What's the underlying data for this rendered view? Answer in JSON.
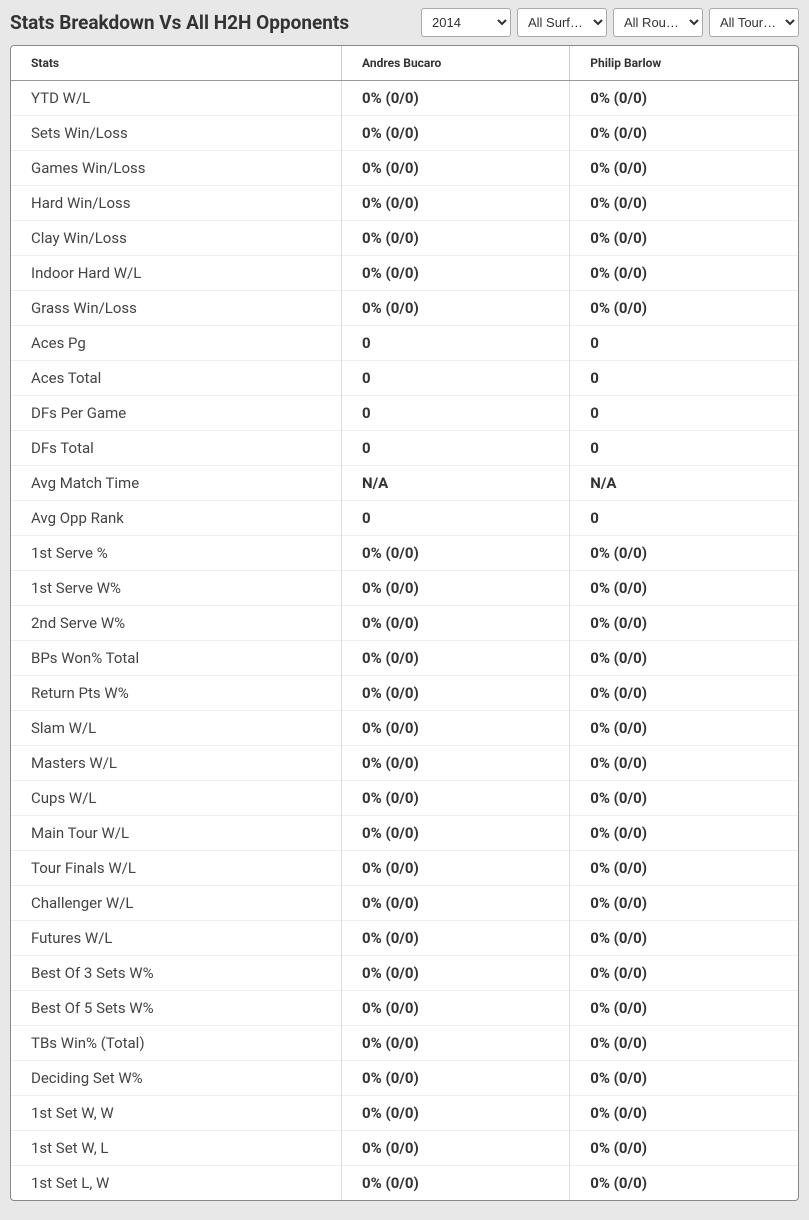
{
  "header": {
    "title": "Stats Breakdown Vs All H2H Opponents",
    "filters": {
      "year": {
        "selected": "2014"
      },
      "surface": {
        "selected": "All Surf…"
      },
      "round": {
        "selected": "All Rou…"
      },
      "tour": {
        "selected": "All Tour…"
      }
    }
  },
  "table": {
    "columns": [
      "Stats",
      "Andres Bucaro",
      "Philip Barlow"
    ],
    "rows": [
      {
        "stat": "YTD W/L",
        "p1": "0% (0/0)",
        "p2": "0% (0/0)"
      },
      {
        "stat": "Sets Win/Loss",
        "p1": "0% (0/0)",
        "p2": "0% (0/0)"
      },
      {
        "stat": "Games Win/Loss",
        "p1": "0% (0/0)",
        "p2": "0% (0/0)"
      },
      {
        "stat": "Hard Win/Loss",
        "p1": "0% (0/0)",
        "p2": "0% (0/0)"
      },
      {
        "stat": "Clay Win/Loss",
        "p1": "0% (0/0)",
        "p2": "0% (0/0)"
      },
      {
        "stat": "Indoor Hard W/L",
        "p1": "0% (0/0)",
        "p2": "0% (0/0)"
      },
      {
        "stat": "Grass Win/Loss",
        "p1": "0% (0/0)",
        "p2": "0% (0/0)"
      },
      {
        "stat": "Aces Pg",
        "p1": "0",
        "p2": "0"
      },
      {
        "stat": "Aces Total",
        "p1": "0",
        "p2": "0"
      },
      {
        "stat": "DFs Per Game",
        "p1": "0",
        "p2": "0"
      },
      {
        "stat": "DFs Total",
        "p1": "0",
        "p2": "0"
      },
      {
        "stat": "Avg Match Time",
        "p1": "N/A",
        "p2": "N/A"
      },
      {
        "stat": "Avg Opp Rank",
        "p1": "0",
        "p2": "0"
      },
      {
        "stat": "1st Serve %",
        "p1": "0% (0/0)",
        "p2": "0% (0/0)"
      },
      {
        "stat": "1st Serve W%",
        "p1": "0% (0/0)",
        "p2": "0% (0/0)"
      },
      {
        "stat": "2nd Serve W%",
        "p1": "0% (0/0)",
        "p2": "0% (0/0)"
      },
      {
        "stat": "BPs Won% Total",
        "p1": "0% (0/0)",
        "p2": "0% (0/0)"
      },
      {
        "stat": "Return Pts W%",
        "p1": "0% (0/0)",
        "p2": "0% (0/0)"
      },
      {
        "stat": "Slam W/L",
        "p1": "0% (0/0)",
        "p2": "0% (0/0)"
      },
      {
        "stat": "Masters W/L",
        "p1": "0% (0/0)",
        "p2": "0% (0/0)"
      },
      {
        "stat": "Cups W/L",
        "p1": "0% (0/0)",
        "p2": "0% (0/0)"
      },
      {
        "stat": "Main Tour W/L",
        "p1": "0% (0/0)",
        "p2": "0% (0/0)"
      },
      {
        "stat": "Tour Finals W/L",
        "p1": "0% (0/0)",
        "p2": "0% (0/0)"
      },
      {
        "stat": "Challenger W/L",
        "p1": "0% (0/0)",
        "p2": "0% (0/0)"
      },
      {
        "stat": "Futures W/L",
        "p1": "0% (0/0)",
        "p2": "0% (0/0)"
      },
      {
        "stat": "Best Of 3 Sets W%",
        "p1": "0% (0/0)",
        "p2": "0% (0/0)"
      },
      {
        "stat": "Best Of 5 Sets W%",
        "p1": "0% (0/0)",
        "p2": "0% (0/0)"
      },
      {
        "stat": "TBs Win% (Total)",
        "p1": "0% (0/0)",
        "p2": "0% (0/0)"
      },
      {
        "stat": "Deciding Set W%",
        "p1": "0% (0/0)",
        "p2": "0% (0/0)"
      },
      {
        "stat": "1st Set W, W",
        "p1": "0% (0/0)",
        "p2": "0% (0/0)"
      },
      {
        "stat": "1st Set W, L",
        "p1": "0% (0/0)",
        "p2": "0% (0/0)"
      },
      {
        "stat": "1st Set L, W",
        "p1": "0% (0/0)",
        "p2": "0% (0/0)"
      }
    ]
  },
  "styling": {
    "background_color": "#e8e8e8",
    "table_background": "#ffffff",
    "table_border_color": "#888888",
    "header_text_color": "#333333",
    "cell_border_color": "#dddddd",
    "row_border_color": "#eeeeee",
    "stat_label_font_weight": 400,
    "value_font_weight": 700,
    "title_fontsize": 19,
    "header_fontsize": 12,
    "cell_fontsize": 15
  }
}
